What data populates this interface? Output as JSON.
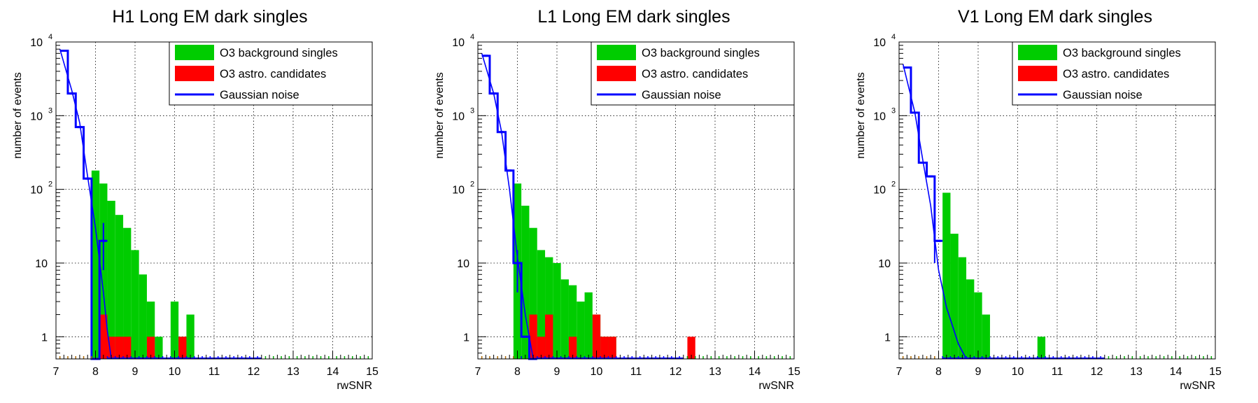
{
  "colors": {
    "background": "#00cc00",
    "astro": "#ff0000",
    "gaussian": "#0000ff",
    "frame": "#000000"
  },
  "legend": {
    "entries": [
      "O3 background singles",
      "O3 astro. candidates",
      "Gaussian noise"
    ],
    "placement": "top-right"
  },
  "chart_data": [
    {
      "type": "histogram",
      "title": "H1 Long EM dark singles",
      "xlabel": "rwSNR",
      "ylabel": "number of events",
      "xlim": [
        7,
        15
      ],
      "ylim": [
        0.5,
        10000
      ],
      "yscale": "log",
      "grid": true,
      "xticks": [
        "7",
        "8",
        "9",
        "10",
        "11",
        "12",
        "13",
        "14",
        "15"
      ],
      "yticks": [
        {
          "base": "1",
          "exp": ""
        },
        {
          "base": "10",
          "exp": ""
        },
        {
          "base": "10",
          "exp": "2"
        },
        {
          "base": "10",
          "exp": "3"
        },
        {
          "base": "10",
          "exp": "4"
        }
      ],
      "bin_width": 0.2,
      "series": [
        {
          "name": "O3 background singles",
          "style": "filled",
          "color": "#00cc00",
          "bin_starts": [
            7.9,
            8.1,
            8.3,
            8.5,
            8.7,
            8.9,
            9.1,
            9.3,
            9.5,
            9.7,
            9.9,
            10.1,
            10.3
          ],
          "values": [
            180,
            120,
            70,
            45,
            30,
            15,
            7,
            3,
            1,
            0,
            3,
            1,
            2
          ]
        },
        {
          "name": "O3 astro. candidates",
          "style": "filled",
          "color": "#ff0000",
          "bin_starts": [
            8.1,
            8.3,
            8.5,
            8.7,
            8.9,
            9.1,
            9.3,
            9.5,
            9.7,
            9.9,
            10.1
          ],
          "values": [
            2,
            1,
            1,
            1,
            0,
            0,
            1,
            0,
            0,
            0,
            1
          ]
        },
        {
          "name": "Gaussian noise",
          "style": "step",
          "color": "#0000ff",
          "bin_starts": [
            7.1,
            7.3,
            7.5,
            7.7,
            7.9,
            8.1
          ],
          "values": [
            7600,
            2000,
            700,
            140,
            0.5,
            20
          ],
          "fit_points": [
            [
              7.1,
              8000
            ],
            [
              7.4,
              2200
            ],
            [
              7.6,
              800
            ],
            [
              7.8,
              150
            ],
            [
              8.0,
              30
            ],
            [
              8.2,
              4
            ],
            [
              8.3,
              1.2
            ],
            [
              8.4,
              0.5
            ]
          ],
          "error_bars": [
            [
              8.2,
              8,
              35
            ]
          ]
        }
      ]
    },
    {
      "type": "histogram",
      "title": "L1 Long EM dark singles",
      "xlabel": "rwSNR",
      "ylabel": "number of events",
      "xlim": [
        7,
        15
      ],
      "ylim": [
        0.5,
        10000
      ],
      "yscale": "log",
      "grid": true,
      "xticks": [
        "7",
        "8",
        "9",
        "10",
        "11",
        "12",
        "13",
        "14",
        "15"
      ],
      "yticks": [
        {
          "base": "1",
          "exp": ""
        },
        {
          "base": "10",
          "exp": ""
        },
        {
          "base": "10",
          "exp": "2"
        },
        {
          "base": "10",
          "exp": "3"
        },
        {
          "base": "10",
          "exp": "4"
        }
      ],
      "bin_width": 0.2,
      "series": [
        {
          "name": "O3 background singles",
          "style": "filled",
          "color": "#00cc00",
          "bin_starts": [
            7.9,
            8.1,
            8.3,
            8.5,
            8.7,
            8.9,
            9.1,
            9.3,
            9.5,
            9.7,
            9.9,
            10.1,
            10.3
          ],
          "values": [
            120,
            60,
            30,
            15,
            12,
            10,
            6,
            5,
            3,
            4,
            2,
            1,
            1
          ]
        },
        {
          "name": "O3 astro. candidates",
          "style": "filled",
          "color": "#ff0000",
          "bin_starts": [
            8.3,
            8.5,
            8.7,
            8.9,
            9.1,
            9.3,
            9.5,
            9.7,
            9.9,
            10.1,
            10.3,
            10.5,
            12.3
          ],
          "values": [
            2,
            1,
            2,
            0,
            0,
            1,
            0,
            0,
            2,
            1,
            1,
            0,
            1
          ]
        },
        {
          "name": "Gaussian noise",
          "style": "step",
          "color": "#0000ff",
          "bin_starts": [
            7.1,
            7.3,
            7.5,
            7.7,
            7.9,
            8.1,
            8.3
          ],
          "values": [
            6500,
            2000,
            600,
            180,
            10,
            1,
            0.5
          ],
          "fit_points": [
            [
              7.1,
              7000
            ],
            [
              7.4,
              2000
            ],
            [
              7.6,
              600
            ],
            [
              7.8,
              100
            ],
            [
              8.0,
              12
            ],
            [
              8.2,
              2
            ],
            [
              8.4,
              0.5
            ]
          ],
          "error_bars": [
            [
              8.0,
              4,
              15
            ]
          ]
        }
      ]
    },
    {
      "type": "histogram",
      "title": "V1 Long EM dark singles",
      "xlabel": "rwSNR",
      "ylabel": "number of events",
      "xlim": [
        7,
        15
      ],
      "ylim": [
        0.5,
        10000
      ],
      "yscale": "log",
      "grid": true,
      "xticks": [
        "7",
        "8",
        "9",
        "10",
        "11",
        "12",
        "13",
        "14",
        "15"
      ],
      "yticks": [
        {
          "base": "1",
          "exp": ""
        },
        {
          "base": "10",
          "exp": ""
        },
        {
          "base": "10",
          "exp": "2"
        },
        {
          "base": "10",
          "exp": "3"
        },
        {
          "base": "10",
          "exp": "4"
        }
      ],
      "bin_width": 0.2,
      "series": [
        {
          "name": "O3 background singles",
          "style": "filled",
          "color": "#00cc00",
          "bin_starts": [
            8.1,
            8.3,
            8.5,
            8.7,
            8.9,
            9.1,
            10.5
          ],
          "values": [
            90,
            25,
            12,
            6,
            4,
            2,
            1
          ]
        },
        {
          "name": "O3 astro. candidates",
          "style": "filled",
          "color": "#ff0000",
          "bin_starts": [],
          "values": []
        },
        {
          "name": "Gaussian noise",
          "style": "step",
          "color": "#0000ff",
          "bin_starts": [
            7.1,
            7.3,
            7.5,
            7.7,
            7.9
          ],
          "values": [
            4500,
            1100,
            230,
            150,
            20
          ],
          "fit_points": [
            [
              7.1,
              5000
            ],
            [
              7.4,
              1100
            ],
            [
              7.6,
              250
            ],
            [
              7.8,
              60
            ],
            [
              8.0,
              8
            ],
            [
              8.2,
              2.5
            ],
            [
              8.5,
              0.8
            ],
            [
              8.7,
              0.5
            ]
          ],
          "error_bars": [
            [
              7.9,
              10,
              30
            ]
          ]
        }
      ]
    }
  ]
}
